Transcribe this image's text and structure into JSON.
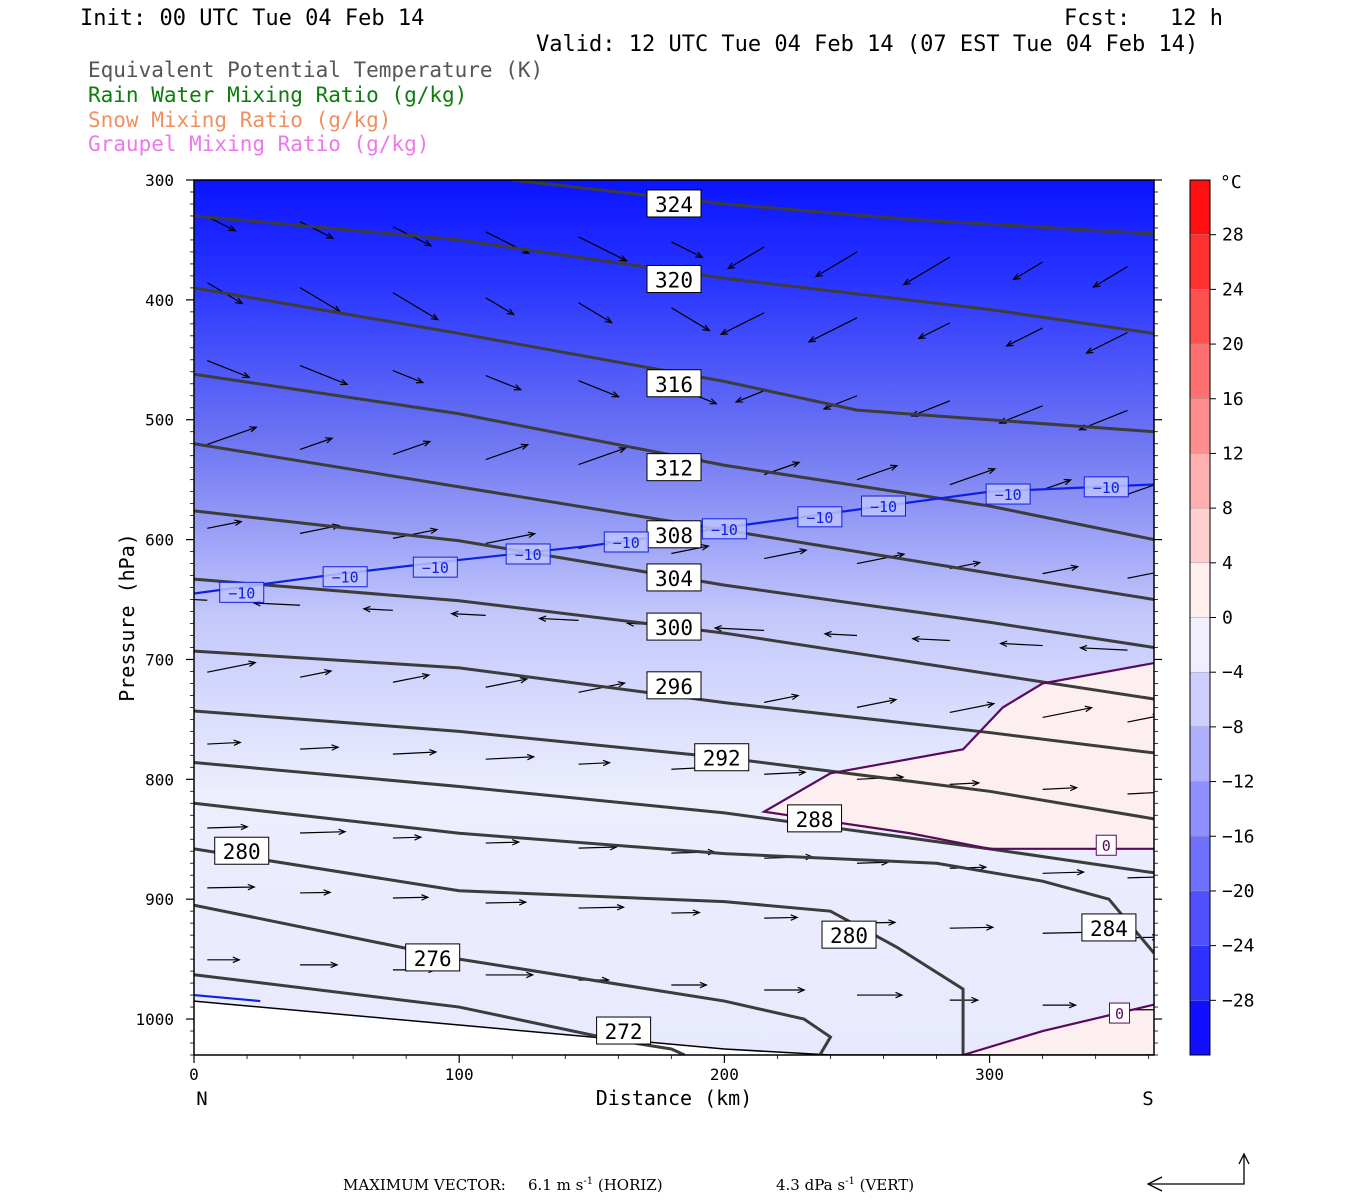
{
  "header": {
    "init": "Init: 00 UTC Tue 04 Feb 14",
    "fcst": "Fcst:   12 h",
    "valid": "Valid: 12 UTC Tue 04 Feb 14 (07 EST Tue 04 Feb 14)"
  },
  "fields": [
    {
      "label": "Equivalent Potential Temperature (K)",
      "color": "#555555"
    },
    {
      "label": "Rain Water Mixing Ratio (g/kg)",
      "color": "#0a7d0a"
    },
    {
      "label": "Snow Mixing Ratio (g/kg)",
      "color": "#f09060"
    },
    {
      "label": "Graupel Mixing Ratio (g/kg)",
      "color": "#ee77ee"
    }
  ],
  "footer": {
    "max_vector_label": "MAXIMUM VECTOR:",
    "horiz_value": "6.1 m s",
    "horiz_unit": "(HORIZ)",
    "vert_value": "4.3 dPa s",
    "vert_unit": "(VERT)",
    "exponent": "-1"
  },
  "chart_data": {
    "type": "heatmap",
    "xlabel": "Distance (km)",
    "ylabel": "Pressure (hPa)",
    "xlim": [
      0,
      362
    ],
    "ylim": [
      1030,
      300
    ],
    "x_ticks": [
      0,
      100,
      200,
      300
    ],
    "y_ticks": [
      300,
      400,
      500,
      600,
      700,
      800,
      900,
      1000
    ],
    "x_end_labels": {
      "left": "N",
      "right": "S"
    },
    "colorbar": {
      "unit": "°C",
      "tick_labels": [
        "28",
        "24",
        "20",
        "16",
        "12",
        "8",
        "4",
        "0",
        "−4",
        "−8",
        "−12",
        "−16",
        "−20",
        "−24",
        "−28"
      ],
      "tick_values": [
        28,
        24,
        20,
        16,
        12,
        8,
        4,
        0,
        -4,
        -8,
        -12,
        -16,
        -20,
        -24,
        -28
      ],
      "range": [
        -32,
        32
      ],
      "cold_color": "#0000ff",
      "neutral_color": "#ffffff",
      "warm_color": "#ff0000"
    },
    "theta_e_contours": [
      {
        "value": 324,
        "points": [
          [
            120,
            300
          ],
          [
            200,
            320
          ],
          [
            270,
            333
          ],
          [
            362,
            345
          ]
        ],
        "label": "324",
        "label_at": [
          181,
          320
        ]
      },
      {
        "value": 320,
        "points": [
          [
            0,
            330
          ],
          [
            100,
            350
          ],
          [
            200,
            382
          ],
          [
            300,
            408
          ],
          [
            362,
            428
          ]
        ],
        "label": "320",
        "label_at": [
          181,
          383
        ]
      },
      {
        "value": 316,
        "points": [
          [
            0,
            390
          ],
          [
            100,
            428
          ],
          [
            200,
            468
          ],
          [
            250,
            492
          ],
          [
            362,
            510
          ]
        ],
        "label": "316",
        "label_at": [
          181,
          470
        ]
      },
      {
        "value": 312,
        "points": [
          [
            0,
            462
          ],
          [
            100,
            495
          ],
          [
            200,
            538
          ],
          [
            300,
            572
          ],
          [
            362,
            600
          ]
        ],
        "label": "312",
        "label_at": [
          181,
          540
        ]
      },
      {
        "value": 308,
        "points": [
          [
            0,
            520
          ],
          [
            100,
            556
          ],
          [
            200,
            592
          ],
          [
            300,
            628
          ],
          [
            362,
            650
          ]
        ],
        "label": "308",
        "label_at": [
          181,
          596
        ]
      },
      {
        "value": 304,
        "points": [
          [
            0,
            576
          ],
          [
            100,
            601
          ],
          [
            200,
            638
          ],
          [
            300,
            669
          ],
          [
            362,
            690
          ]
        ],
        "label": "304",
        "label_at": [
          181,
          632
        ]
      },
      {
        "value": 300,
        "points": [
          [
            0,
            633
          ],
          [
            100,
            651
          ],
          [
            200,
            678
          ],
          [
            300,
            712
          ],
          [
            362,
            733
          ]
        ],
        "label": "300",
        "label_at": [
          181,
          673
        ]
      },
      {
        "value": 296,
        "points": [
          [
            0,
            693
          ],
          [
            100,
            707
          ],
          [
            200,
            736
          ],
          [
            300,
            761
          ],
          [
            362,
            778
          ]
        ],
        "label": "296",
        "label_at": [
          181,
          722
        ]
      },
      {
        "value": 292,
        "points": [
          [
            0,
            743
          ],
          [
            100,
            760
          ],
          [
            200,
            782
          ],
          [
            300,
            810
          ],
          [
            362,
            833
          ]
        ],
        "label": "292",
        "label_at": [
          199,
          782
        ]
      },
      {
        "value": 288,
        "points": [
          [
            0,
            786
          ],
          [
            100,
            806
          ],
          [
            200,
            828
          ],
          [
            300,
            858
          ],
          [
            362,
            878
          ]
        ],
        "label": "288",
        "label_at": [
          234,
          833
        ]
      },
      {
        "value": 284,
        "points": [
          [
            0,
            820
          ],
          [
            100,
            845
          ],
          [
            200,
            862
          ],
          [
            280,
            870
          ],
          [
            320,
            885
          ],
          [
            345,
            900
          ],
          [
            362,
            945
          ]
        ],
        "label": "284",
        "label_at": [
          345,
          924
        ]
      },
      {
        "value": 280,
        "points": [
          [
            0,
            858
          ],
          [
            100,
            893
          ],
          [
            200,
            902
          ],
          [
            240,
            910
          ],
          [
            265,
            940
          ],
          [
            290,
            975
          ],
          [
            290,
            1030
          ]
        ],
        "label": "280",
        "label_at": [
          247,
          930
        ]
      },
      {
        "value": 280,
        "points": [],
        "label": "280",
        "label_at": [
          18,
          860
        ]
      },
      {
        "value": 276,
        "points": [
          [
            0,
            905
          ],
          [
            100,
            950
          ],
          [
            200,
            985
          ],
          [
            230,
            1000
          ],
          [
            240,
            1015
          ],
          [
            236,
            1030
          ]
        ],
        "label": "276",
        "label_at": [
          90,
          949
        ]
      },
      {
        "value": 272,
        "points": [
          [
            0,
            963
          ],
          [
            100,
            990
          ],
          [
            160,
            1018
          ],
          [
            180,
            1025
          ],
          [
            185,
            1030
          ]
        ],
        "label": "272",
        "label_at": [
          162,
          1010
        ]
      }
    ],
    "temperature_contours": [
      {
        "value": -10,
        "points": [
          [
            0,
            645
          ],
          [
            50,
            630
          ],
          [
            100,
            617
          ],
          [
            150,
            605
          ],
          [
            200,
            590
          ],
          [
            250,
            575
          ],
          [
            300,
            560
          ],
          [
            362,
            554
          ]
        ],
        "labels_at": [
          [
            18,
            644
          ],
          [
            57,
            631
          ],
          [
            91,
            623
          ],
          [
            126,
            612
          ],
          [
            163,
            602
          ],
          [
            200,
            591
          ],
          [
            236,
            581
          ],
          [
            260,
            572
          ],
          [
            307,
            562
          ],
          [
            344,
            556
          ]
        ],
        "label": "−10"
      },
      {
        "value": -10,
        "points": [
          [
            0,
            980
          ],
          [
            25,
            985
          ]
        ],
        "labels_at": [],
        "label": "−10"
      },
      {
        "value": 0,
        "points": [
          [
            362,
            703
          ],
          [
            320,
            720
          ],
          [
            305,
            740
          ],
          [
            290,
            775
          ],
          [
            240,
            795
          ],
          [
            215,
            827
          ],
          [
            270,
            845
          ],
          [
            300,
            858
          ],
          [
            362,
            858
          ]
        ],
        "labels_at": [
          [
            344,
            855
          ]
        ],
        "label": "0"
      },
      {
        "value": 0,
        "points": [
          [
            290,
            1030
          ],
          [
            320,
            1010
          ],
          [
            362,
            988
          ]
        ],
        "labels_at": [
          [
            349,
            995
          ]
        ],
        "label": "0"
      }
    ],
    "terrain": [
      [
        0,
        985
      ],
      [
        100,
        1005
      ],
      [
        200,
        1025
      ],
      [
        240,
        1030
      ],
      [
        362,
        1030
      ]
    ]
  }
}
